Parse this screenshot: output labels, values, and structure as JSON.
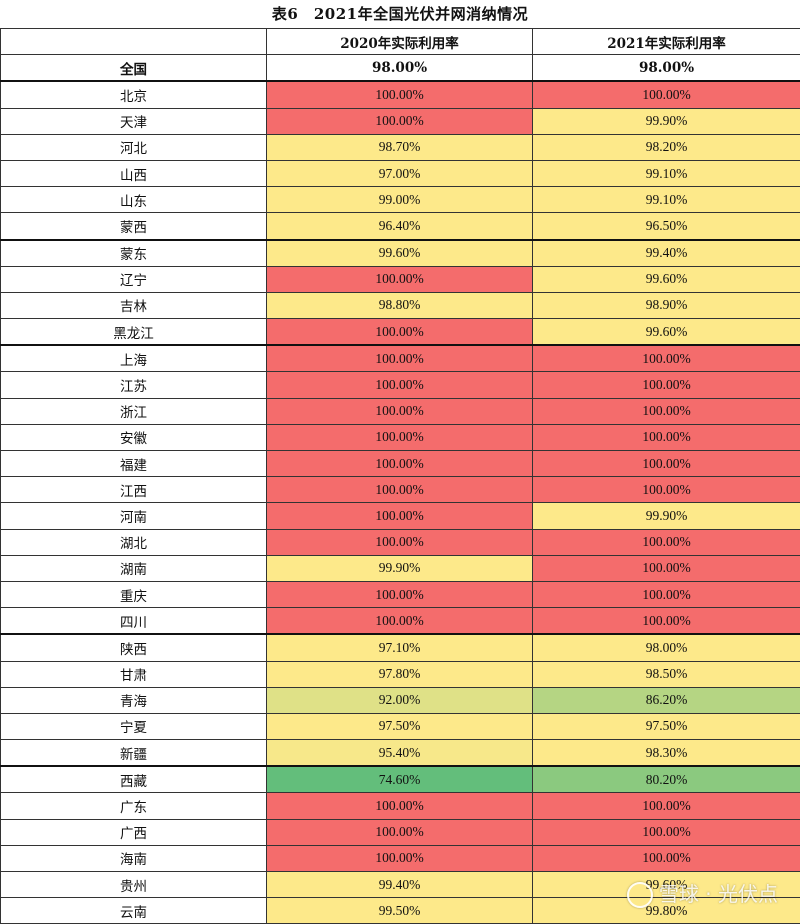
{
  "title": "表6　2021年全国光伏并网消纳情况",
  "header": {
    "region_label": "",
    "col2020": "2020年实际利用率",
    "col2021": "2021年实际利用率"
  },
  "national": {
    "label": "全国",
    "v2020": "98.00%",
    "v2021": "98.00%"
  },
  "rows": [
    {
      "label": "北京",
      "v2020": "100.00%",
      "v2021": "100.00%"
    },
    {
      "label": "天津",
      "v2020": "100.00%",
      "v2021": "99.90%"
    },
    {
      "label": "河北",
      "v2020": "98.70%",
      "v2021": "98.20%"
    },
    {
      "label": "山西",
      "v2020": "97.00%",
      "v2021": "99.10%"
    },
    {
      "label": "山东",
      "v2020": "99.00%",
      "v2021": "99.10%"
    },
    {
      "label": "蒙西",
      "v2020": "96.40%",
      "v2021": "96.50%"
    },
    {
      "label": "蒙东",
      "v2020": "99.60%",
      "v2021": "99.40%"
    },
    {
      "label": "辽宁",
      "v2020": "100.00%",
      "v2021": "99.60%"
    },
    {
      "label": "吉林",
      "v2020": "98.80%",
      "v2021": "98.90%"
    },
    {
      "label": "黑龙江",
      "v2020": "100.00%",
      "v2021": "99.60%"
    },
    {
      "label": "上海",
      "v2020": "100.00%",
      "v2021": "100.00%"
    },
    {
      "label": "江苏",
      "v2020": "100.00%",
      "v2021": "100.00%"
    },
    {
      "label": "浙江",
      "v2020": "100.00%",
      "v2021": "100.00%"
    },
    {
      "label": "安徽",
      "v2020": "100.00%",
      "v2021": "100.00%"
    },
    {
      "label": "福建",
      "v2020": "100.00%",
      "v2021": "100.00%"
    },
    {
      "label": "江西",
      "v2020": "100.00%",
      "v2021": "100.00%"
    },
    {
      "label": "河南",
      "v2020": "100.00%",
      "v2021": "99.90%"
    },
    {
      "label": "湖北",
      "v2020": "100.00%",
      "v2021": "100.00%"
    },
    {
      "label": "湖南",
      "v2020": "99.90%",
      "v2021": "100.00%"
    },
    {
      "label": "重庆",
      "v2020": "100.00%",
      "v2021": "100.00%"
    },
    {
      "label": "四川",
      "v2020": "100.00%",
      "v2021": "100.00%"
    },
    {
      "label": "陕西",
      "v2020": "97.10%",
      "v2021": "98.00%"
    },
    {
      "label": "甘肃",
      "v2020": "97.80%",
      "v2021": "98.50%"
    },
    {
      "label": "青海",
      "v2020": "92.00%",
      "v2021": "86.20%"
    },
    {
      "label": "宁夏",
      "v2020": "97.50%",
      "v2021": "97.50%"
    },
    {
      "label": "新疆",
      "v2020": "95.40%",
      "v2021": "98.30%"
    },
    {
      "label": "西藏",
      "v2020": "74.60%",
      "v2021": "80.20%"
    },
    {
      "label": "广东",
      "v2020": "100.00%",
      "v2021": "100.00%"
    },
    {
      "label": "广西",
      "v2020": "100.00%",
      "v2021": "100.00%"
    },
    {
      "label": "海南",
      "v2020": "100.00%",
      "v2021": "100.00%"
    },
    {
      "label": "贵州",
      "v2020": "99.40%",
      "v2021": "99.60%"
    },
    {
      "label": "云南",
      "v2020": "99.50%",
      "v2021": "99.80%"
    }
  ],
  "colors": {
    "full_red": "#f46c6c",
    "min_green": "#63be7b",
    "mid_yellow": "#fbe98a",
    "border": "#333333"
  },
  "watermark": {
    "text": "雪球 · 光伏点"
  }
}
